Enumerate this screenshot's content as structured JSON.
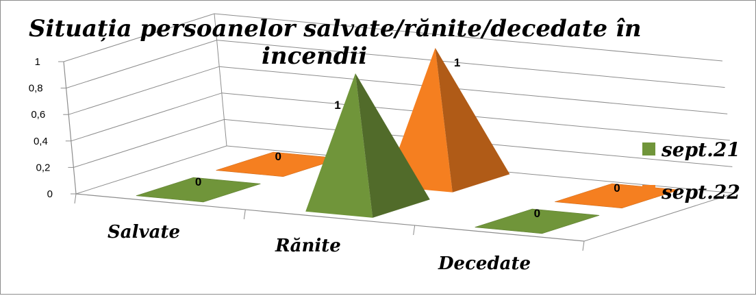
{
  "chart_data": {
    "type": "bar",
    "shape": "pyramid-3d",
    "title": "Situația persoanelor salvate/rănite/decedate în incendii",
    "title_line1": "Situația persoanelor salvate/rănite/decedate în",
    "title_line2": "incendii",
    "categories": [
      "Salvate",
      "Rănite",
      "Decedate"
    ],
    "series": [
      {
        "name": "sept.21",
        "values": [
          0,
          1,
          0
        ],
        "color": "#70953A"
      },
      {
        "name": "sept.22",
        "values": [
          0,
          1,
          0
        ],
        "color": "#F57F20"
      }
    ],
    "y_ticks": [
      "0",
      "0,2",
      "0,4",
      "0,6",
      "0,8",
      "1"
    ],
    "ylim": [
      0,
      1
    ],
    "grid": true,
    "legend_position": "right",
    "data_labels": true
  }
}
